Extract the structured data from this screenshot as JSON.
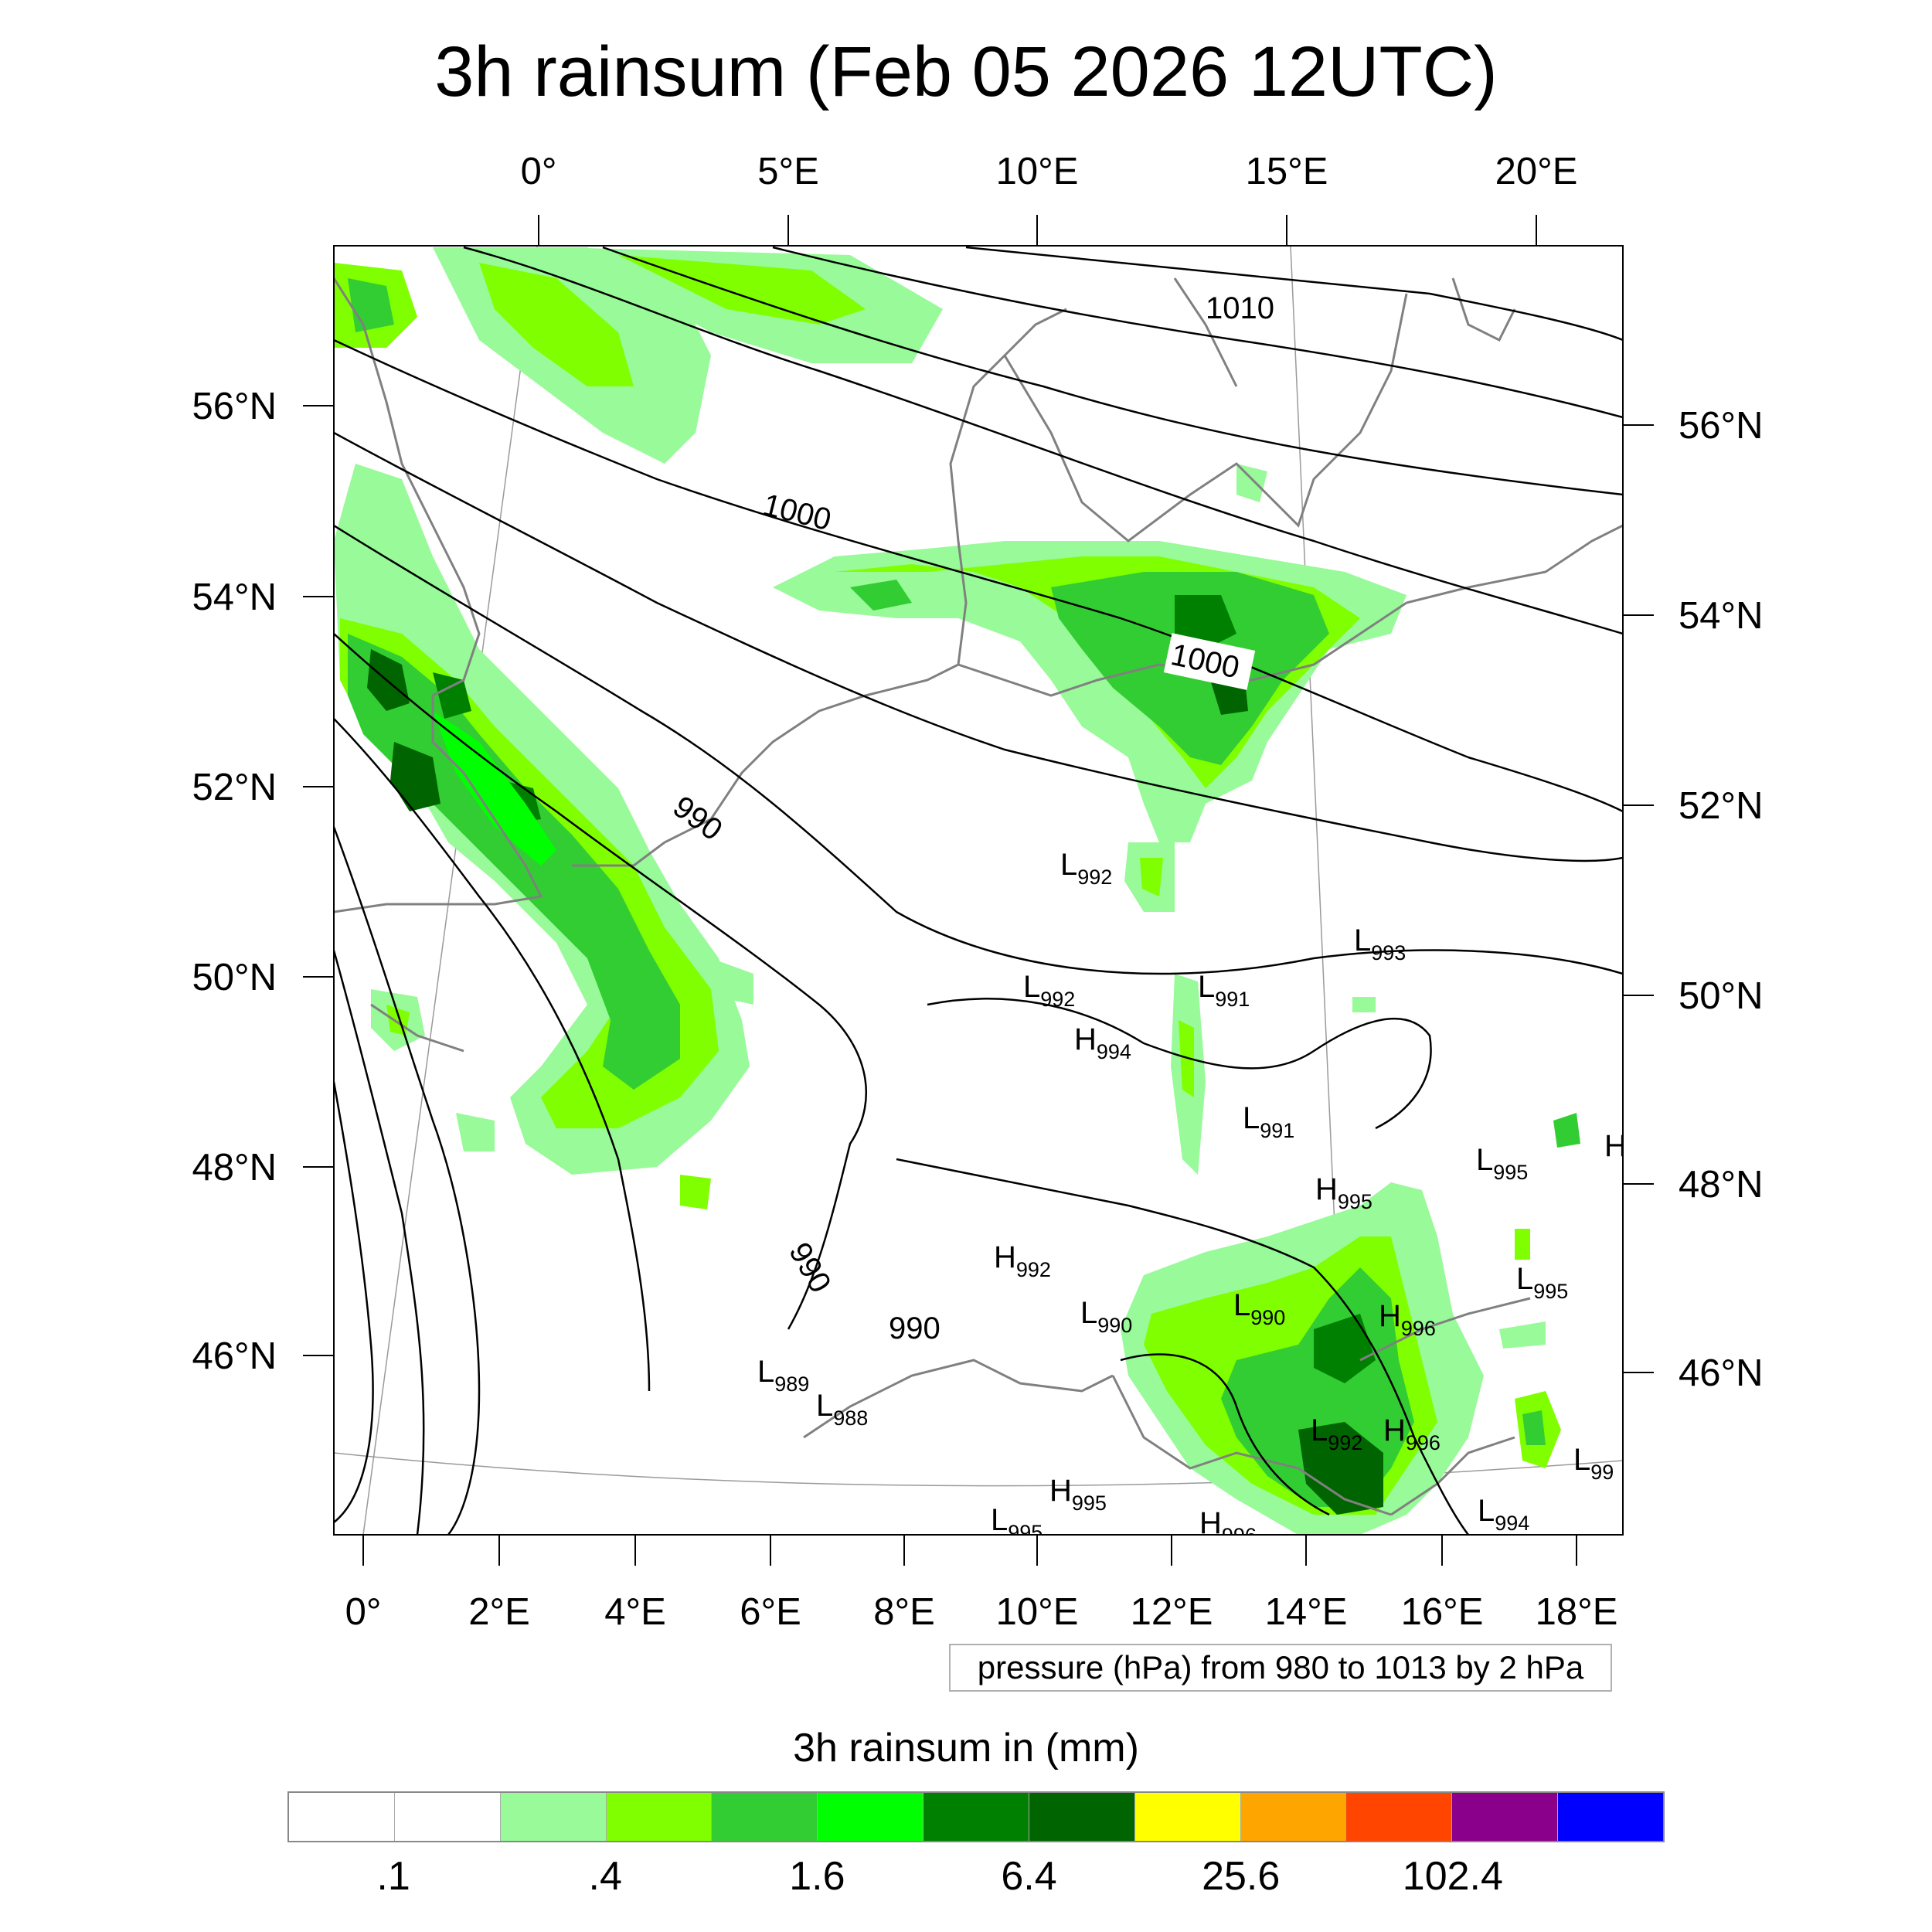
{
  "title": "3h rainsum (Feb 05 2026 12UTC)",
  "map": {
    "top_lon_labels": [
      "0°",
      "5°E",
      "10°E",
      "15°E",
      "20°E"
    ],
    "bottom_lon_labels": [
      "0°",
      "2°E",
      "4°E",
      "6°E",
      "8°E",
      "10°E",
      "12°E",
      "14°E",
      "16°E",
      "18°E"
    ],
    "left_lat_labels": [
      "56°N",
      "54°N",
      "52°N",
      "50°N",
      "48°N",
      "46°N"
    ],
    "right_lat_labels": [
      "56°N",
      "54°N",
      "52°N",
      "50°N",
      "48°N",
      "46°N"
    ],
    "isobar_labels": [
      "1010",
      "1000",
      "1000",
      "990",
      "990",
      "990"
    ],
    "pressure_centers": [
      {
        "type": "L",
        "value": "992"
      },
      {
        "type": "L",
        "value": "993"
      },
      {
        "type": "L",
        "value": "992"
      },
      {
        "type": "L",
        "value": "991"
      },
      {
        "type": "H",
        "value": "994"
      },
      {
        "type": "L",
        "value": "991"
      },
      {
        "type": "L",
        "value": "995"
      },
      {
        "type": "H",
        "value": ""
      },
      {
        "type": "H",
        "value": "995"
      },
      {
        "type": "H",
        "value": "992"
      },
      {
        "type": "L",
        "value": "995"
      },
      {
        "type": "L",
        "value": "990"
      },
      {
        "type": "L",
        "value": "990"
      },
      {
        "type": "H",
        "value": "996"
      },
      {
        "type": "L",
        "value": "989"
      },
      {
        "type": "L",
        "value": "988"
      },
      {
        "type": "L",
        "value": "992"
      },
      {
        "type": "H",
        "value": "996"
      },
      {
        "type": "L",
        "value": "99"
      },
      {
        "type": "H",
        "value": "995"
      },
      {
        "type": "L",
        "value": "995"
      },
      {
        "type": "H",
        "value": "996"
      },
      {
        "type": "L",
        "value": "994"
      }
    ],
    "colors": {
      "light_green": "#98fa98",
      "lime": "#7fff00",
      "medium_green": "#32cd32",
      "bright_green": "#00ff00",
      "dark_green": "#008000",
      "darkest_green": "#006400",
      "coastline": "#808080",
      "isobar": "#000000"
    }
  },
  "pressure_note": "pressure (hPa) from 980 to 1013 by 2 hPa",
  "legend": {
    "title": "3h rainsum in (mm)",
    "colors": [
      "#ffffff",
      "#ffffff",
      "#98fa98",
      "#7fff00",
      "#32cd32",
      "#00ff00",
      "#008000",
      "#006400",
      "#ffff00",
      "#ffa500",
      "#ff4500",
      "#8b008b",
      "#0000ff"
    ],
    "labels": [
      ".1",
      ".4",
      "1.6",
      "6.4",
      "25.6",
      "102.4"
    ]
  }
}
